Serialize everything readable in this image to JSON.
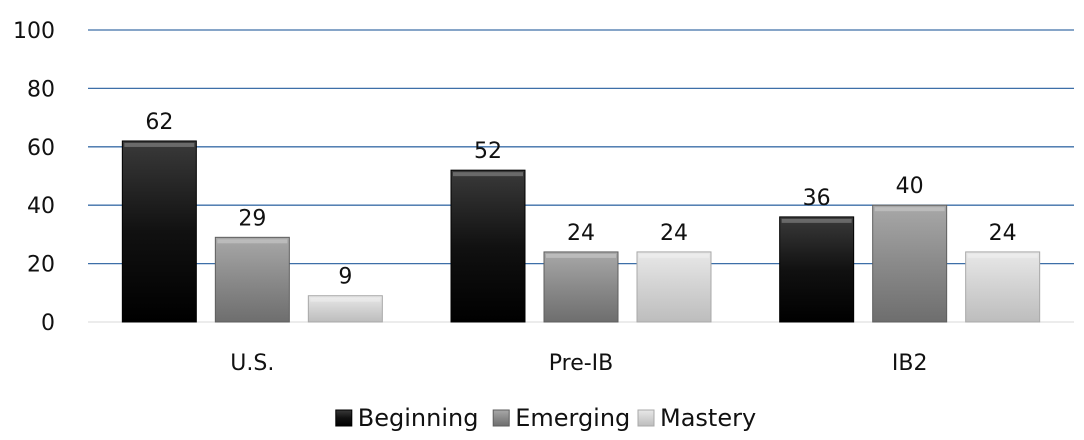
{
  "chart_data": {
    "type": "bar",
    "categories": [
      "U.S.",
      "Pre-IB",
      "IB2"
    ],
    "series": [
      {
        "name": "Beginning",
        "values": [
          62,
          52,
          36
        ],
        "color": "#111111"
      },
      {
        "name": "Emerging",
        "values": [
          29,
          24,
          40
        ],
        "color": "#8c8c8c"
      },
      {
        "name": "Mastery",
        "values": [
          9,
          24,
          24
        ],
        "color": "#d4d4d4"
      }
    ],
    "ylim": [
      0,
      100
    ],
    "yticks": [
      0,
      20,
      40,
      60,
      80,
      100
    ],
    "grid": true,
    "grid_color": "#3d6fa8",
    "legend_position": "bottom",
    "data_labels": true
  }
}
